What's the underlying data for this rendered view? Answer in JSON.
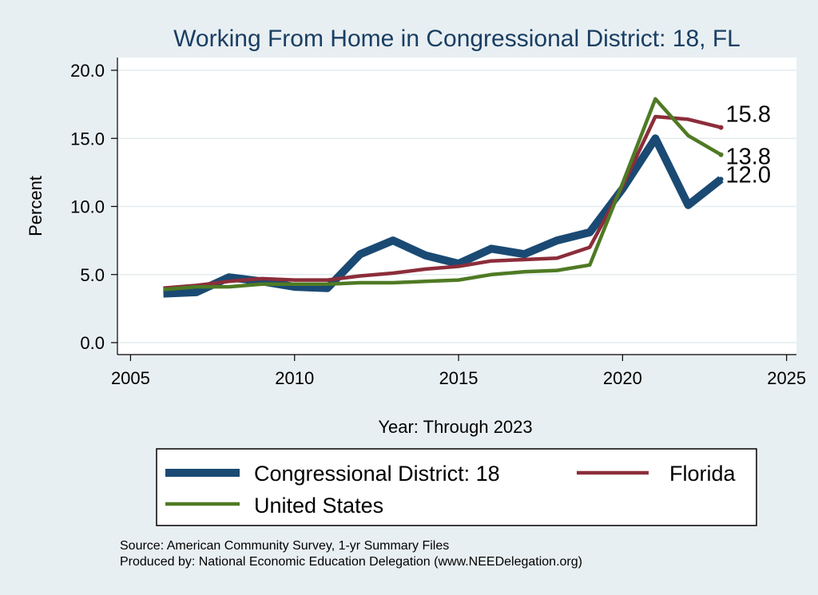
{
  "chart_data": {
    "type": "line",
    "title": "Working From Home in Congressional District: 18, FL",
    "xlabel": "Year: Through 2023",
    "ylabel": "Percent",
    "xlim": [
      2005,
      2025
    ],
    "ylim": [
      0,
      20
    ],
    "xticks": [
      "2005",
      "2010",
      "2015",
      "2020",
      "2025"
    ],
    "yticks": [
      "0.0",
      "5.0",
      "10.0",
      "15.0",
      "20.0"
    ],
    "grid": true,
    "legend_position": "bottom",
    "x": [
      2006,
      2007,
      2008,
      2009,
      2010,
      2011,
      2012,
      2013,
      2014,
      2015,
      2016,
      2017,
      2018,
      2019,
      2020,
      2021,
      2022,
      2023
    ],
    "series": [
      {
        "name": "Congressional District: 18",
        "color": "#1a4a73",
        "values": [
          3.6,
          3.7,
          4.8,
          4.5,
          4.1,
          4.0,
          6.5,
          7.5,
          6.4,
          5.8,
          6.9,
          6.5,
          7.5,
          8.1,
          11.3,
          15.0,
          10.1,
          12.0
        ],
        "end_label": "12.0"
      },
      {
        "name": "Florida",
        "color": "#8c2d3a",
        "values": [
          4.0,
          4.2,
          4.5,
          4.7,
          4.6,
          4.6,
          4.9,
          5.1,
          5.4,
          5.6,
          6.0,
          6.1,
          6.2,
          7.0,
          11.5,
          16.6,
          16.4,
          15.8
        ],
        "end_label": "15.8"
      },
      {
        "name": "United States",
        "color": "#4f7a24",
        "values": [
          3.9,
          4.1,
          4.1,
          4.3,
          4.3,
          4.3,
          4.4,
          4.4,
          4.5,
          4.6,
          5.0,
          5.2,
          5.3,
          5.7,
          11.7,
          17.9,
          15.2,
          13.8
        ],
        "end_label": "13.8"
      }
    ],
    "source_lines": [
      "Source: American Community Survey, 1-yr Summary Files",
      "Produced by: National Economic Education Delegation (www.NEEDelegation.org)"
    ]
  }
}
